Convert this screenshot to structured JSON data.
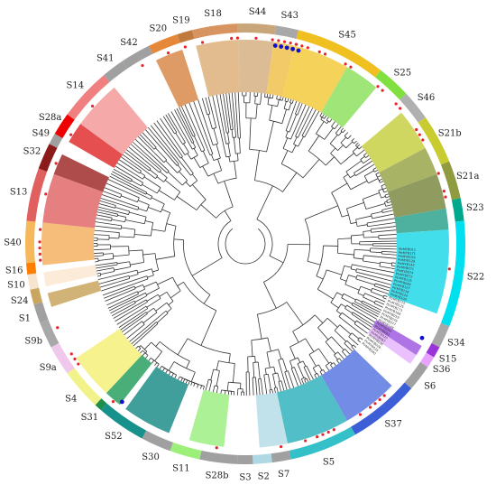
{
  "figure": {
    "subfamilies": [
      {
        "label": "S44",
        "start": -2,
        "end": 8,
        "color": "#c9a57a"
      },
      {
        "label": "S43",
        "start": 8,
        "end": 14,
        "color": "#a8a8a8"
      },
      {
        "label": "S45",
        "start": 14,
        "end": 38,
        "color": "#f0c020"
      },
      {
        "label": "S25",
        "start": 38,
        "end": 47,
        "color": "#7fe040"
      },
      {
        "label": "S46",
        "start": 47,
        "end": 55,
        "color": "#b0b0b0"
      },
      {
        "label": "S21b",
        "start": 55,
        "end": 68,
        "color": "#c8cc30"
      },
      {
        "label": "S21a",
        "start": 68,
        "end": 78,
        "color": "#909b40"
      },
      {
        "label": "S23",
        "start": 78,
        "end": 84,
        "color": "#00a88e"
      },
      {
        "label": "S22",
        "start": 84,
        "end": 112,
        "color": "#00e0ee"
      },
      {
        "label": "S34",
        "start": 112,
        "end": 118,
        "color": "#a8a8a8"
      },
      {
        "label": "S15",
        "start": 118,
        "end": 121,
        "color": "#9b34d8"
      },
      {
        "label": "S36",
        "start": 121,
        "end": 124,
        "color": "#e7a3ff"
      },
      {
        "label": "S6",
        "start": 124,
        "end": 131,
        "color": "#a0a0a0"
      },
      {
        "label": "S37",
        "start": 131,
        "end": 150,
        "color": "#3c5fd8"
      },
      {
        "label": "S5",
        "start": 150,
        "end": 168,
        "color": "#33c0c8"
      },
      {
        "label": "S7",
        "start": 168,
        "end": 173,
        "color": "#a0a0a0"
      },
      {
        "label": "S2",
        "start": 173,
        "end": 178,
        "color": "#aed8e4"
      },
      {
        "label": "S3",
        "start": 178,
        "end": 182,
        "color": "#a0a0a0"
      },
      {
        "label": "S28b",
        "start": 182,
        "end": 192,
        "color": "#a0a0a0"
      },
      {
        "label": "S11",
        "start": 192,
        "end": 200,
        "color": "#9cf07a"
      },
      {
        "label": "S30",
        "start": 200,
        "end": 208,
        "color": "#a0a0a0"
      },
      {
        "label": "S52",
        "start": 208,
        "end": 221,
        "color": "#17918c"
      },
      {
        "label": "S31",
        "start": 221,
        "end": 223,
        "color": "#1e8f4a"
      },
      {
        "label": "S4",
        "start": 223,
        "end": 234,
        "color": "#f2f28a"
      },
      {
        "label": "S9a",
        "start": 234,
        "end": 242,
        "color": "#f0c8ec"
      },
      {
        "label": "S9b",
        "start": 242,
        "end": 249,
        "color": "#a8a8a8"
      },
      {
        "label": "S1",
        "start": 249,
        "end": 254,
        "color": "#a0a0a0"
      },
      {
        "label": "S24",
        "start": 254,
        "end": 258,
        "color": "#c9a55f"
      },
      {
        "label": "S10",
        "start": 258,
        "end": 262,
        "color": "#f7e4cf"
      },
      {
        "label": "S16",
        "start": 262,
        "end": 265,
        "color": "#ff7f00"
      },
      {
        "label": "S40",
        "start": 265,
        "end": 276,
        "color": "#f5b85a"
      },
      {
        "label": "S13",
        "start": 276,
        "end": 290,
        "color": "#e06060"
      },
      {
        "label": "S32",
        "start": 290,
        "end": 297,
        "color": "#8b1a1a"
      },
      {
        "label": "S49",
        "start": 297,
        "end": 300,
        "color": "#a0a0a0"
      },
      {
        "label": "S28a",
        "start": 300,
        "end": 306,
        "color": "#ee0000"
      },
      {
        "label": "S14",
        "start": 306,
        "end": 320,
        "color": "#f08080"
      },
      {
        "label": "S41",
        "start": 320,
        "end": 326,
        "color": "#a0a0a0"
      },
      {
        "label": "S42",
        "start": 326,
        "end": 334,
        "color": "#a0a0a0"
      },
      {
        "label": "S20",
        "start": 334,
        "end": 342,
        "color": "#e5883a"
      },
      {
        "label": "S19",
        "start": 342,
        "end": 346,
        "color": "#c07a3d"
      },
      {
        "label": "S18",
        "start": 346,
        "end": 358,
        "color": "#d89460"
      }
    ],
    "highlight_sectors": [
      {
        "start": -2,
        "end": 8,
        "color": "#d6b083"
      },
      {
        "start": 8,
        "end": 14,
        "color": "#f0c24e"
      },
      {
        "start": 14,
        "end": 30,
        "color": "#f3ca3d"
      },
      {
        "start": 30,
        "end": 40,
        "color": "#8ee060"
      },
      {
        "start": 50,
        "end": 62,
        "color": "#c8d045"
      },
      {
        "start": 62,
        "end": 70,
        "color": "#9aa64a"
      },
      {
        "start": 70,
        "end": 80,
        "color": "#7d8a43"
      },
      {
        "start": 80,
        "end": 86,
        "color": "#2fa38e"
      },
      {
        "start": 86,
        "end": 110,
        "color": "#22d8e8"
      },
      {
        "start": 120,
        "end": 123,
        "color": "#a05ce0"
      },
      {
        "start": 123,
        "end": 126,
        "color": "#e7b5ff"
      },
      {
        "start": 134,
        "end": 150,
        "color": "#5a78e0"
      },
      {
        "start": 150,
        "end": 168,
        "color": "#34b3bd"
      },
      {
        "start": 168,
        "end": 176,
        "color": "#b6dce8"
      },
      {
        "start": 186,
        "end": 196,
        "color": "#9eee84"
      },
      {
        "start": 202,
        "end": 216,
        "color": "#1e8e8a"
      },
      {
        "start": 218,
        "end": 223,
        "color": "#2aa060"
      },
      {
        "start": 223,
        "end": 236,
        "color": "#f5f07a"
      },
      {
        "start": 252,
        "end": 256,
        "color": "#c9a55f"
      },
      {
        "start": 258,
        "end": 262,
        "color": "#fbe8d2"
      },
      {
        "start": 264,
        "end": 276,
        "color": "#f3b261"
      },
      {
        "start": 276,
        "end": 290,
        "color": "#e26a6a"
      },
      {
        "start": 290,
        "end": 296,
        "color": "#a02c2c"
      },
      {
        "start": 300,
        "end": 306,
        "color": "#e03030"
      },
      {
        "start": 306,
        "end": 320,
        "color": "#f39a9a"
      },
      {
        "start": 334,
        "end": 342,
        "color": "#d98a4a"
      },
      {
        "start": 346,
        "end": 358,
        "color": "#ddb07a"
      }
    ],
    "red_dots": [
      {
        "angle": -3,
        "count": 2
      },
      {
        "angle": 3,
        "count": 1
      },
      {
        "angle": 11,
        "count": 5
      },
      {
        "angle": 16,
        "count": 3
      },
      {
        "angle": 22,
        "count": 2
      },
      {
        "angle": 30,
        "count": 2
      },
      {
        "angle": 41,
        "count": 2
      },
      {
        "angle": 48,
        "count": 2
      },
      {
        "angle": 58,
        "count": 3
      },
      {
        "angle": 70,
        "count": 1
      },
      {
        "angle": 76,
        "count": 2
      },
      {
        "angle": 97,
        "count": 1
      },
      {
        "angle": 140,
        "count": 4
      },
      {
        "angle": 146,
        "count": 1
      },
      {
        "angle": 157,
        "count": 4
      },
      {
        "angle": 163,
        "count": 1
      },
      {
        "angle": 170,
        "count": 1
      },
      {
        "angle": 188,
        "count": 1
      },
      {
        "angle": 220,
        "count": 1
      },
      {
        "angle": 236,
        "count": 3
      },
      {
        "angle": 246,
        "count": 1
      },
      {
        "angle": 268,
        "count": 4
      },
      {
        "angle": 274,
        "count": 1
      },
      {
        "angle": 284,
        "count": 1
      },
      {
        "angle": 293,
        "count": 1
      },
      {
        "angle": 302,
        "count": 1
      },
      {
        "angle": 312,
        "count": 1
      },
      {
        "angle": 330,
        "count": 1
      },
      {
        "angle": 338,
        "count": 1
      },
      {
        "angle": 343,
        "count": 1
      },
      {
        "angle": 348,
        "count": 1
      }
    ],
    "blue_dots": [
      {
        "angle": 12,
        "count": 5
      },
      {
        "angle": 118,
        "count": 1
      },
      {
        "angle": 218,
        "count": 1
      }
    ],
    "dot_colors": {
      "red": "#e8232a",
      "blue": "#1111cc"
    },
    "leaf_labels": [
      "PtrMYB011",
      "PtrMYB171",
      "PtrMYB159",
      "PtrMYB129",
      "PtrMYB143",
      "PtrMYB071",
      "PtrMYB074",
      "PtrMYB072",
      "PtrMYB135",
      "PtrMYB084",
      "PtrMYB127",
      "PtrMYB118",
      "PtrMYB120",
      "PtrMYB100",
      "PtrMYB115",
      "PtrMYB125",
      "PtrMYB173",
      "PtrMYB168",
      "PtrMYB019",
      "PtrMYB076",
      "PtrMYB077",
      "PtrMYB148",
      "PtrMYB049",
      "PtrMYB043",
      "PtrMYB020",
      "PtrMYB067",
      "PtrMYB036",
      "PtrMYB028",
      "PtrMYB035",
      "PtrMYB040"
    ]
  }
}
